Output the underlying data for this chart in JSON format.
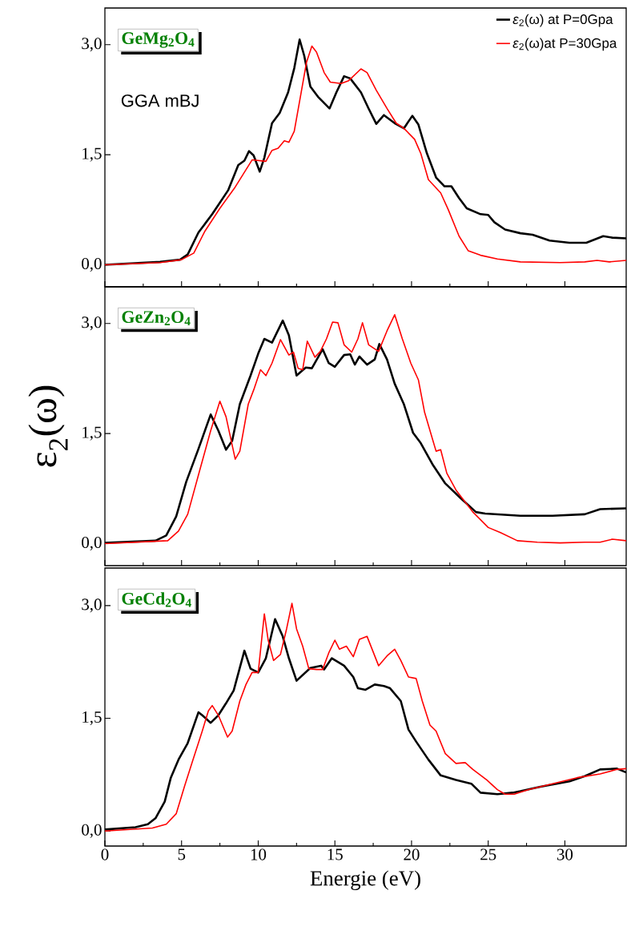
{
  "chart_data": [
    {
      "type": "line",
      "title": "GeMg$_{2}$O$_{4}$",
      "annotations": [
        "GGA mBJ"
      ],
      "legend": "top right",
      "tick_labels": "y",
      "xlim": [
        0,
        34
      ],
      "xticks": [
        0,
        5,
        10,
        15,
        20,
        25,
        30
      ],
      "ylim": [
        -0.3,
        3.5
      ],
      "yticks": [
        {
          "value": 0,
          "label": "0,0"
        },
        {
          "value": 1.5,
          "label": "1,5"
        },
        {
          "value": 3,
          "label": "3,0"
        }
      ],
      "series": [
        {
          "name": "*ε*$_{2}$(ω) at P=0Gpa",
          "color": "#000000",
          "x": [
            0,
            3.6,
            4.9,
            5.4,
            6.1,
            7.0,
            8.05,
            8.7,
            9.1,
            9.4,
            9.7,
            10.1,
            10.4,
            10.9,
            11.4,
            11.95,
            12.35,
            12.7,
            13.0,
            13.4,
            13.9,
            14.65,
            15.1,
            15.6,
            16.0,
            16.7,
            17.2,
            17.7,
            18.2,
            18.9,
            19.5,
            20.05,
            20.45,
            21.0,
            21.6,
            22.15,
            22.6,
            23.1,
            23.6,
            24.5,
            25.0,
            25.4,
            26.1,
            27.1,
            27.9,
            29.0,
            30.3,
            31.4,
            32.5,
            33.1,
            34.0
          ],
          "values": [
            0,
            0.04,
            0.07,
            0.14,
            0.44,
            0.69,
            1.02,
            1.36,
            1.42,
            1.55,
            1.49,
            1.27,
            1.46,
            1.93,
            2.07,
            2.35,
            2.68,
            3.07,
            2.85,
            2.43,
            2.29,
            2.13,
            2.35,
            2.57,
            2.54,
            2.35,
            2.13,
            1.92,
            2.04,
            1.93,
            1.86,
            2.03,
            1.91,
            1.52,
            1.19,
            1.07,
            1.07,
            0.91,
            0.77,
            0.69,
            0.68,
            0.58,
            0.48,
            0.43,
            0.41,
            0.33,
            0.3,
            0.3,
            0.39,
            0.37,
            0.36
          ]
        },
        {
          "name": "*ε*$_{2}$(ω)at P=30Gpa",
          "color": "#ff0000",
          "x": [
            0,
            3.6,
            5.0,
            5.8,
            6.5,
            7.5,
            8.5,
            9.6,
            10.5,
            10.9,
            11.3,
            11.7,
            12.0,
            12.35,
            12.75,
            13.15,
            13.5,
            13.8,
            14.3,
            14.7,
            15.4,
            15.9,
            16.7,
            17.1,
            17.7,
            18.4,
            19.0,
            19.5,
            20.2,
            20.6,
            21.1,
            21.9,
            22.4,
            23.1,
            23.7,
            24.5,
            25.6,
            27.1,
            29.7,
            31.3,
            32.1,
            32.9,
            34.0
          ],
          "values": [
            0,
            0.03,
            0.07,
            0.16,
            0.45,
            0.77,
            1.06,
            1.43,
            1.41,
            1.56,
            1.59,
            1.69,
            1.67,
            1.82,
            2.29,
            2.76,
            2.98,
            2.9,
            2.62,
            2.49,
            2.47,
            2.51,
            2.67,
            2.62,
            2.38,
            2.13,
            1.93,
            1.86,
            1.71,
            1.52,
            1.16,
            0.98,
            0.75,
            0.39,
            0.19,
            0.13,
            0.08,
            0.04,
            0.03,
            0.04,
            0.06,
            0.04,
            0.06
          ]
        }
      ]
    },
    {
      "type": "line",
      "title": "GeZn$_{2}$O$_{4}$",
      "ylabel": "ε$_{2}$(ω)",
      "tick_labels": "y",
      "xlim": [
        0,
        34
      ],
      "xticks": [
        0,
        5,
        10,
        15,
        20,
        25,
        30
      ],
      "ylim": [
        -0.3,
        3.5
      ],
      "yticks": [
        {
          "value": 0,
          "label": "0,0"
        },
        {
          "value": 1.5,
          "label": "1,5"
        },
        {
          "value": 3,
          "label": "3,0"
        }
      ],
      "series": [
        {
          "color": "#000000",
          "x": [
            0,
            3.3,
            4.0,
            4.65,
            5.3,
            6.1,
            6.9,
            7.4,
            7.9,
            8.3,
            8.8,
            9.5,
            10.0,
            10.4,
            10.9,
            11.6,
            12.0,
            12.5,
            13.1,
            13.5,
            14.2,
            14.6,
            15.0,
            15.6,
            16.0,
            16.3,
            16.6,
            17.1,
            17.6,
            17.9,
            18.4,
            18.9,
            19.5,
            20.1,
            20.6,
            21.4,
            22.2,
            23.2,
            24.2,
            24.8,
            27.1,
            29.2,
            31.3,
            32.3,
            34.0
          ],
          "values": [
            0.01,
            0.04,
            0.11,
            0.37,
            0.84,
            1.29,
            1.76,
            1.54,
            1.28,
            1.4,
            1.9,
            2.29,
            2.59,
            2.79,
            2.74,
            3.04,
            2.84,
            2.29,
            2.4,
            2.39,
            2.65,
            2.46,
            2.41,
            2.57,
            2.58,
            2.44,
            2.55,
            2.44,
            2.51,
            2.72,
            2.51,
            2.18,
            1.9,
            1.51,
            1.37,
            1.07,
            0.82,
            0.62,
            0.43,
            0.41,
            0.38,
            0.38,
            0.4,
            0.47,
            0.48
          ]
        },
        {
          "color": "#ff0000",
          "x": [
            0,
            4.1,
            4.8,
            5.4,
            6.2,
            6.9,
            7.5,
            7.9,
            8.5,
            8.8,
            9.35,
            9.75,
            10.15,
            10.5,
            10.9,
            11.45,
            12.0,
            12.3,
            12.6,
            12.9,
            13.2,
            13.7,
            14.05,
            14.45,
            14.85,
            15.2,
            15.6,
            16.1,
            16.5,
            16.8,
            17.2,
            17.85,
            18.4,
            18.9,
            19.4,
            19.95,
            20.45,
            20.85,
            21.4,
            21.6,
            21.9,
            22.3,
            22.9,
            24.0,
            25.0,
            25.8,
            26.9,
            28.2,
            29.7,
            31.3,
            32.3,
            33.1,
            34.0
          ],
          "values": [
            0,
            0.04,
            0.17,
            0.4,
            1.01,
            1.54,
            1.94,
            1.73,
            1.15,
            1.26,
            1.9,
            2.12,
            2.37,
            2.29,
            2.46,
            2.78,
            2.57,
            2.61,
            2.39,
            2.37,
            2.76,
            2.54,
            2.62,
            2.79,
            3.02,
            3.01,
            2.71,
            2.61,
            2.79,
            3.01,
            2.71,
            2.62,
            2.9,
            3.12,
            2.79,
            2.46,
            2.23,
            1.79,
            1.4,
            1.26,
            1.28,
            0.96,
            0.73,
            0.43,
            0.22,
            0.15,
            0.04,
            0.02,
            0.01,
            0.02,
            0.02,
            0.06,
            0.04
          ]
        }
      ]
    },
    {
      "type": "line",
      "title": "GeCd$_{2}$O$_{4}$",
      "xlabel": "Energie (eV)",
      "xlim": [
        0,
        34
      ],
      "xticks": [
        0,
        5,
        10,
        15,
        20,
        25,
        30
      ],
      "ylim": [
        -0.2,
        3.5
      ],
      "yticks": [
        {
          "value": 0,
          "label": "0,0"
        },
        {
          "value": 1.5,
          "label": "1,5"
        },
        {
          "value": 3,
          "label": "3,0"
        }
      ],
      "series": [
        {
          "color": "#000000",
          "x": [
            0,
            2.0,
            2.8,
            3.3,
            3.9,
            4.3,
            4.8,
            5.4,
            6.1,
            6.35,
            6.9,
            7.4,
            7.9,
            8.4,
            9.1,
            9.5,
            10.0,
            10.5,
            11.1,
            11.6,
            12.0,
            12.5,
            13.4,
            14.1,
            14.3,
            14.8,
            15.6,
            16.2,
            16.5,
            17.0,
            17.6,
            18.2,
            18.6,
            19.3,
            19.8,
            20.3,
            21.1,
            21.9,
            22.9,
            23.9,
            24.5,
            25.6,
            26.6,
            27.1,
            28.4,
            30.3,
            31.3,
            32.3,
            33.4,
            34.0
          ],
          "values": [
            0.02,
            0.05,
            0.09,
            0.17,
            0.39,
            0.71,
            0.95,
            1.17,
            1.58,
            1.54,
            1.44,
            1.54,
            1.7,
            1.87,
            2.4,
            2.16,
            2.11,
            2.3,
            2.82,
            2.59,
            2.3,
            2.0,
            2.17,
            2.2,
            2.15,
            2.3,
            2.2,
            2.05,
            1.9,
            1.88,
            1.95,
            1.93,
            1.9,
            1.73,
            1.35,
            1.19,
            0.95,
            0.74,
            0.68,
            0.63,
            0.51,
            0.49,
            0.51,
            0.53,
            0.59,
            0.66,
            0.73,
            0.82,
            0.83,
            0.78
          ]
        },
        {
          "color": "#ff0000",
          "x": [
            0,
            3.1,
            4.0,
            4.65,
            5.2,
            5.7,
            6.35,
            6.75,
            7.0,
            7.4,
            8.0,
            8.3,
            8.8,
            9.2,
            9.6,
            10.0,
            10.4,
            10.65,
            11.0,
            11.45,
            11.85,
            12.2,
            12.5,
            12.9,
            13.3,
            13.8,
            14.2,
            14.6,
            15.0,
            15.3,
            15.75,
            16.2,
            16.6,
            17.1,
            17.85,
            18.4,
            18.9,
            19.3,
            19.8,
            20.3,
            20.7,
            21.2,
            21.6,
            22.2,
            22.9,
            23.5,
            24.0,
            24.9,
            25.6,
            26.1,
            26.7,
            27.6,
            29.2,
            30.8,
            32.3,
            33.4,
            34.0
          ],
          "values": [
            0,
            0.04,
            0.09,
            0.23,
            0.6,
            0.92,
            1.33,
            1.6,
            1.67,
            1.54,
            1.25,
            1.33,
            1.73,
            1.95,
            2.11,
            2.11,
            2.89,
            2.54,
            2.27,
            2.35,
            2.69,
            3.03,
            2.69,
            2.46,
            2.16,
            2.15,
            2.15,
            2.37,
            2.54,
            2.42,
            2.46,
            2.32,
            2.55,
            2.59,
            2.2,
            2.33,
            2.42,
            2.27,
            2.05,
            2.03,
            1.73,
            1.41,
            1.33,
            1.03,
            0.9,
            0.91,
            0.82,
            0.68,
            0.55,
            0.49,
            0.49,
            0.55,
            0.63,
            0.71,
            0.76,
            0.82,
            0.83
          ]
        }
      ]
    }
  ]
}
